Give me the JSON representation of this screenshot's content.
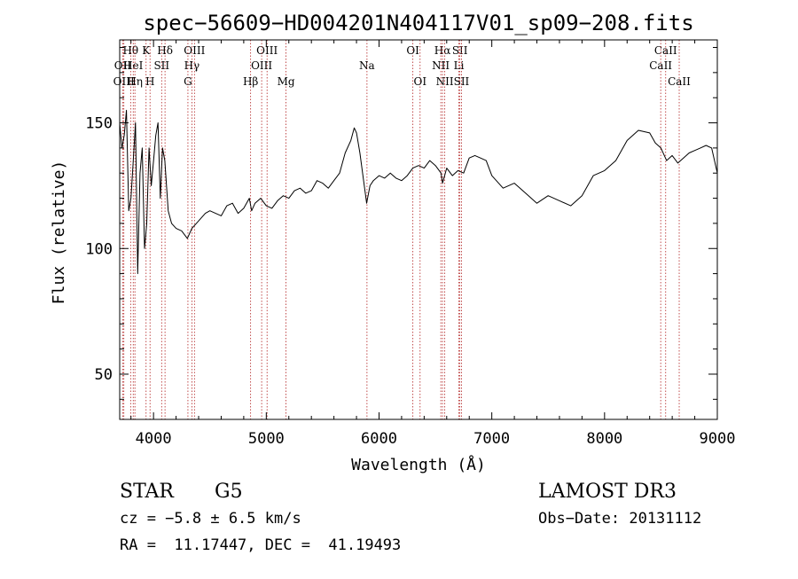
{
  "chart_data": {
    "type": "line",
    "title": "spec−56609−HD004201N404117V01_sp09−208.fits",
    "xlabel": "Wavelength (Å)",
    "ylabel": "Flux (relative)",
    "xlim": [
      3700,
      9000
    ],
    "ylim": [
      32,
      183
    ],
    "xticks": [
      4000,
      5000,
      6000,
      7000,
      8000,
      9000
    ],
    "yticks": [
      50,
      100,
      150
    ],
    "series": [
      {
        "name": "spectrum",
        "x": [
          3700,
          3720,
          3740,
          3760,
          3780,
          3800,
          3820,
          3840,
          3860,
          3880,
          3900,
          3920,
          3940,
          3960,
          3980,
          4000,
          4020,
          4040,
          4060,
          4080,
          4100,
          4130,
          4160,
          4200,
          4250,
          4300,
          4340,
          4380,
          4420,
          4460,
          4500,
          4550,
          4600,
          4650,
          4700,
          4750,
          4800,
          4850,
          4870,
          4900,
          4950,
          5000,
          5050,
          5100,
          5150,
          5200,
          5250,
          5300,
          5350,
          5400,
          5450,
          5500,
          5550,
          5600,
          5650,
          5700,
          5750,
          5780,
          5800,
          5830,
          5860,
          5890,
          5920,
          5950,
          6000,
          6050,
          6100,
          6150,
          6200,
          6250,
          6300,
          6350,
          6400,
          6450,
          6500,
          6550,
          6563,
          6600,
          6650,
          6700,
          6750,
          6800,
          6850,
          6900,
          6950,
          7000,
          7100,
          7200,
          7300,
          7400,
          7500,
          7600,
          7700,
          7800,
          7900,
          8000,
          8100,
          8200,
          8300,
          8400,
          8450,
          8500,
          8550,
          8600,
          8650,
          8700,
          8750,
          8800,
          8850,
          8900,
          8950,
          9000
        ],
        "values": [
          150,
          140,
          145,
          155,
          115,
          120,
          135,
          150,
          90,
          130,
          140,
          100,
          110,
          140,
          125,
          135,
          145,
          150,
          120,
          140,
          135,
          115,
          110,
          108,
          107,
          104,
          108,
          110,
          112,
          114,
          115,
          114,
          113,
          117,
          118,
          114,
          116,
          120,
          115,
          118,
          120,
          117,
          116,
          119,
          121,
          120,
          123,
          124,
          122,
          123,
          127,
          126,
          124,
          127,
          130,
          138,
          143,
          148,
          146,
          138,
          128,
          118,
          125,
          127,
          129,
          128,
          130,
          128,
          127,
          129,
          132,
          133,
          132,
          135,
          133,
          130,
          126,
          132,
          129,
          131,
          130,
          136,
          137,
          136,
          135,
          129,
          124,
          126,
          122,
          118,
          121,
          119,
          117,
          121,
          129,
          131,
          135,
          143,
          147,
          146,
          142,
          140,
          135,
          137,
          134,
          136,
          138,
          139,
          140,
          141,
          140,
          130
        ]
      }
    ],
    "lines": [
      {
        "label": "Hθ",
        "x": 3797,
        "row": 1
      },
      {
        "label": "K",
        "x": 3934,
        "row": 1
      },
      {
        "label": "Hδ",
        "x": 4102,
        "row": 1
      },
      {
        "label": "OIII",
        "x": 4363,
        "row": 1
      },
      {
        "label": "OIII",
        "x": 5007,
        "row": 1
      },
      {
        "label": "OI",
        "x": 6300,
        "row": 1
      },
      {
        "label": "Hα",
        "x": 6563,
        "row": 1
      },
      {
        "label": "SII",
        "x": 6717,
        "row": 1
      },
      {
        "label": "CaII",
        "x": 8542,
        "row": 1
      },
      {
        "label": "OII",
        "x": 3727,
        "row": 2
      },
      {
        "label": "HeI",
        "x": 3820,
        "row": 2
      },
      {
        "label": "SII",
        "x": 4072,
        "row": 2
      },
      {
        "label": "Hγ",
        "x": 4340,
        "row": 2
      },
      {
        "label": "OIII",
        "x": 4959,
        "row": 2
      },
      {
        "label": "Na",
        "x": 5893,
        "row": 2
      },
      {
        "label": "NII",
        "x": 6548,
        "row": 2
      },
      {
        "label": "Li",
        "x": 6708,
        "row": 2
      },
      {
        "label": "CaII",
        "x": 8498,
        "row": 2
      },
      {
        "label": "OIII",
        "x": 3737,
        "row": 3
      },
      {
        "label": "Hη",
        "x": 3835,
        "row": 3
      },
      {
        "label": "H",
        "x": 3969,
        "row": 3
      },
      {
        "label": "G",
        "x": 4305,
        "row": 3
      },
      {
        "label": "Hβ",
        "x": 4861,
        "row": 3
      },
      {
        "label": "Mg",
        "x": 5175,
        "row": 3
      },
      {
        "label": "OI",
        "x": 6364,
        "row": 3
      },
      {
        "label": "NII",
        "x": 6583,
        "row": 3
      },
      {
        "label": "SII",
        "x": 6731,
        "row": 3
      },
      {
        "label": "CaII",
        "x": 8662,
        "row": 3
      }
    ]
  },
  "info": {
    "object_class": "STAR",
    "subclass": "G5",
    "survey": "LAMOST DR3",
    "redshift": "cz = −5.8 ± 6.5 km/s",
    "obs_date": "Obs−Date: 20131112",
    "coords": "RA =  11.17447, DEC =  41.19493"
  },
  "colors": {
    "spectrum": "#000000",
    "lines": "#b22222",
    "axis": "#000000"
  }
}
